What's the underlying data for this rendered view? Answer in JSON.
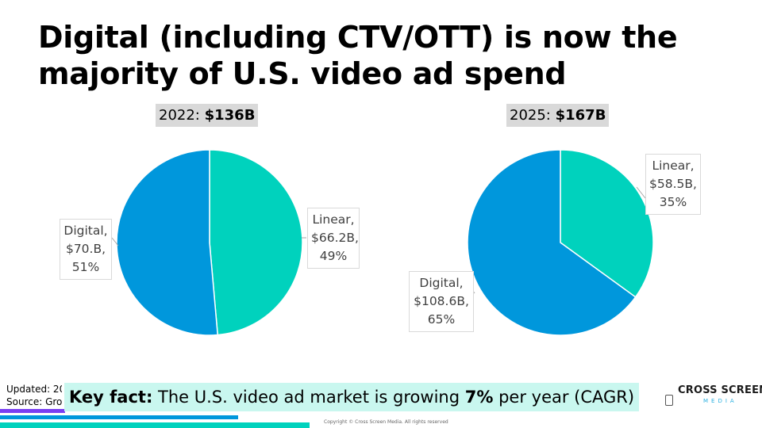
{
  "slide": {
    "title_line1": "Digital (including CTV/OTT) is now the",
    "title_line2": "majority of U.S. video ad spend"
  },
  "charts": [
    {
      "year_label": "2022:",
      "total": "$136B"
    },
    {
      "year_label": "2025:",
      "total": "$167B"
    }
  ],
  "chart_data": [
    {
      "type": "pie",
      "title": "2022: $136B",
      "categories": [
        "Linear",
        "Digital"
      ],
      "values": [
        66.2,
        70.0
      ],
      "percents": [
        49,
        51
      ],
      "value_labels": [
        "$66.2B,",
        "$70.B,"
      ],
      "percent_labels": [
        "49%",
        "51%"
      ],
      "colors": [
        "#00d2bd",
        "#0097dc"
      ]
    },
    {
      "type": "pie",
      "title": "2025: $167B",
      "categories": [
        "Linear",
        "Digital"
      ],
      "values": [
        58.5,
        108.6
      ],
      "percents": [
        35,
        65
      ],
      "value_labels": [
        "$58.5B,",
        "$108.6B,"
      ],
      "percent_labels": [
        "35%",
        "65%"
      ],
      "colors": [
        "#00d2bd",
        "#0097dc"
      ]
    }
  ],
  "callouts": {
    "c1_linear": [
      "Linear,",
      "$66.2B,",
      "49%"
    ],
    "c1_digital": [
      "Digital,",
      "$70.B,",
      "51%"
    ],
    "c2_linear": [
      "Linear,",
      "$58.5B,",
      "35%"
    ],
    "c2_digital": [
      "Digital,",
      "$108.6B,",
      "65%"
    ]
  },
  "footer": {
    "updated": "Updated: 20",
    "source": "Source: Gro",
    "keyfact_label": "Key fact:",
    "keyfact_text1": "The U.S. video ad market is growing",
    "keyfact_pct": "7%",
    "keyfact_text2": "per year (CAGR)",
    "copyright": "Copyright © Cross Screen Media. All rights reserved",
    "logo_text": "CROSS SCREEN",
    "logo_sub": "MEDIA",
    "bar_colors": [
      "#7a3ff2",
      "#0097dc",
      "#00d2bd"
    ]
  }
}
